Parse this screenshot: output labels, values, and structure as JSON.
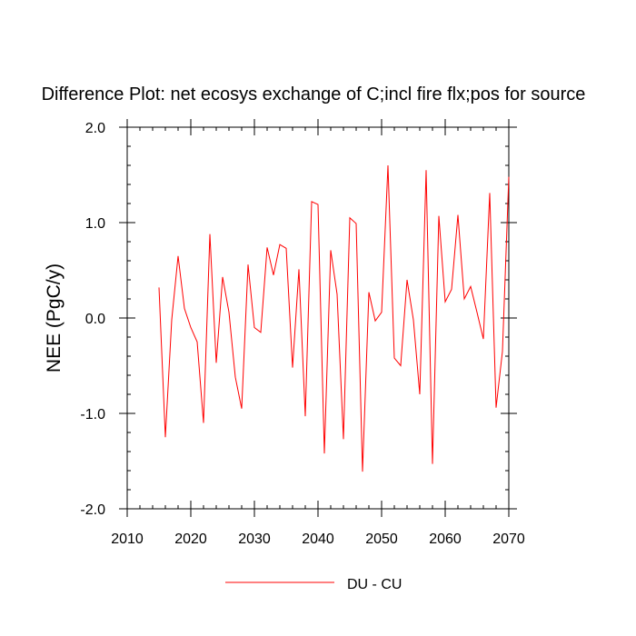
{
  "chart_data": {
    "type": "line",
    "title": "Difference Plot: net ecosys exchange of C;incl fire flx;pos for source",
    "xlabel": "",
    "ylabel": "NEE  (PgC/y)",
    "xlim": [
      2010,
      2070
    ],
    "ylim": [
      -2.0,
      2.0
    ],
    "xticks": [
      2010,
      2020,
      2030,
      2040,
      2050,
      2060,
      2070
    ],
    "yticks": [
      -2.0,
      -1.0,
      0.0,
      1.0,
      2.0
    ],
    "xtick_labels": [
      "2010",
      "2020",
      "2030",
      "2040",
      "2050",
      "2060",
      "2070"
    ],
    "ytick_labels": [
      "-2.0",
      "-1.0",
      "0.0",
      "1.0",
      "2.0"
    ],
    "grid": false,
    "legend_position": "bottom-center",
    "series": [
      {
        "name": "DU - CU",
        "color": "#ff0000",
        "x": [
          2015,
          2016,
          2017,
          2018,
          2019,
          2020,
          2021,
          2022,
          2023,
          2024,
          2025,
          2026,
          2027,
          2028,
          2029,
          2030,
          2031,
          2032,
          2033,
          2034,
          2035,
          2036,
          2037,
          2038,
          2039,
          2040,
          2041,
          2042,
          2043,
          2044,
          2045,
          2046,
          2047,
          2048,
          2049,
          2050,
          2051,
          2052,
          2053,
          2054,
          2055,
          2056,
          2057,
          2058,
          2059,
          2060,
          2061,
          2062,
          2063,
          2064,
          2065,
          2066,
          2067,
          2068,
          2069,
          2070
        ],
        "values": [
          0.32,
          -1.25,
          -0.02,
          0.65,
          0.1,
          -0.1,
          -0.25,
          -1.1,
          0.88,
          -0.47,
          0.43,
          0.06,
          -0.62,
          -0.95,
          0.56,
          -0.1,
          -0.15,
          0.74,
          0.45,
          0.77,
          0.73,
          -0.52,
          0.51,
          -1.03,
          1.22,
          1.19,
          -1.42,
          0.71,
          0.25,
          -1.27,
          1.05,
          0.99,
          -1.61,
          0.27,
          -0.03,
          0.06,
          1.6,
          -0.42,
          -0.5,
          0.4,
          -0.02,
          -0.8,
          1.55,
          -1.53,
          1.07,
          0.17,
          0.3,
          1.08,
          0.2,
          0.33,
          0.06,
          -0.22,
          1.31,
          -0.94,
          -0.35,
          1.48
        ]
      }
    ]
  },
  "legend": {
    "items": [
      {
        "label": "DU - CU",
        "color": "#ff0000"
      }
    ]
  }
}
